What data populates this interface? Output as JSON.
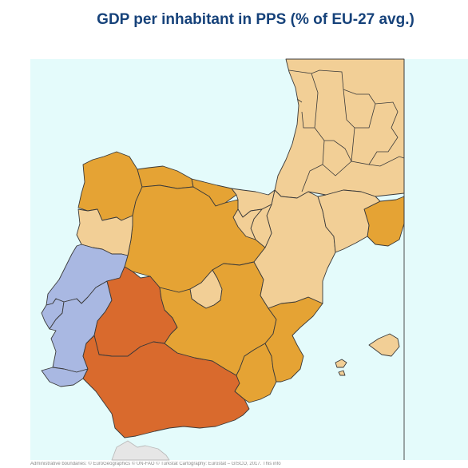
{
  "title": "GDP per inhabitant in PPS (% of EU-27 avg.)",
  "source_note": "Administrative boundaries: © EuroGeographics © UN-FAO © Turkstat  Cartography: Eurostat – GISCO, 2017. This info",
  "colors": {
    "sea": "#e4fbfb",
    "land_outside": "#e6e6e6",
    "light_tan": "#f2cf96",
    "gold": "#e5a334",
    "dark_orange": "#d96a2d",
    "lavender": "#a9b8e2",
    "title": "#16427a",
    "border": "#3a3a3a"
  },
  "regions": [
    {
      "name": "Galicia",
      "class": "gold"
    },
    {
      "name": "Asturias",
      "class": "gold"
    },
    {
      "name": "Cantabria",
      "class": "gold"
    },
    {
      "name": "Castilla y León",
      "class": "gold"
    },
    {
      "name": "Norte (PT)",
      "class": "light_tan"
    },
    {
      "name": "Centro (PT)",
      "class": "lavender"
    },
    {
      "name": "Área Metropolitana de Lisboa",
      "class": "lavender"
    },
    {
      "name": "Alentejo",
      "class": "lavender"
    },
    {
      "name": "Algarve",
      "class": "lavender"
    },
    {
      "name": "Extremadura",
      "class": "dark_orange"
    },
    {
      "name": "Andalucía",
      "class": "dark_orange"
    },
    {
      "name": "Castilla-La Mancha",
      "class": "gold"
    },
    {
      "name": "Comunidad de Madrid",
      "class": "light_tan"
    },
    {
      "name": "Región de Murcia",
      "class": "gold"
    },
    {
      "name": "Comunitat Valenciana",
      "class": "gold"
    },
    {
      "name": "Aragón",
      "class": "light_tan"
    },
    {
      "name": "Cataluña",
      "class": "light_tan"
    },
    {
      "name": "País Vasco",
      "class": "light_tan"
    },
    {
      "name": "Navarra",
      "class": "light_tan"
    },
    {
      "name": "La Rioja",
      "class": "light_tan"
    },
    {
      "name": "Illes Balears",
      "class": "light_tan"
    },
    {
      "name": "Southern France",
      "class": "light_tan"
    },
    {
      "name": "Languedoc-Roussillon",
      "class": "gold"
    },
    {
      "name": "Andorra",
      "class": "land_outside"
    },
    {
      "name": "Morocco",
      "class": "land_outside"
    }
  ]
}
